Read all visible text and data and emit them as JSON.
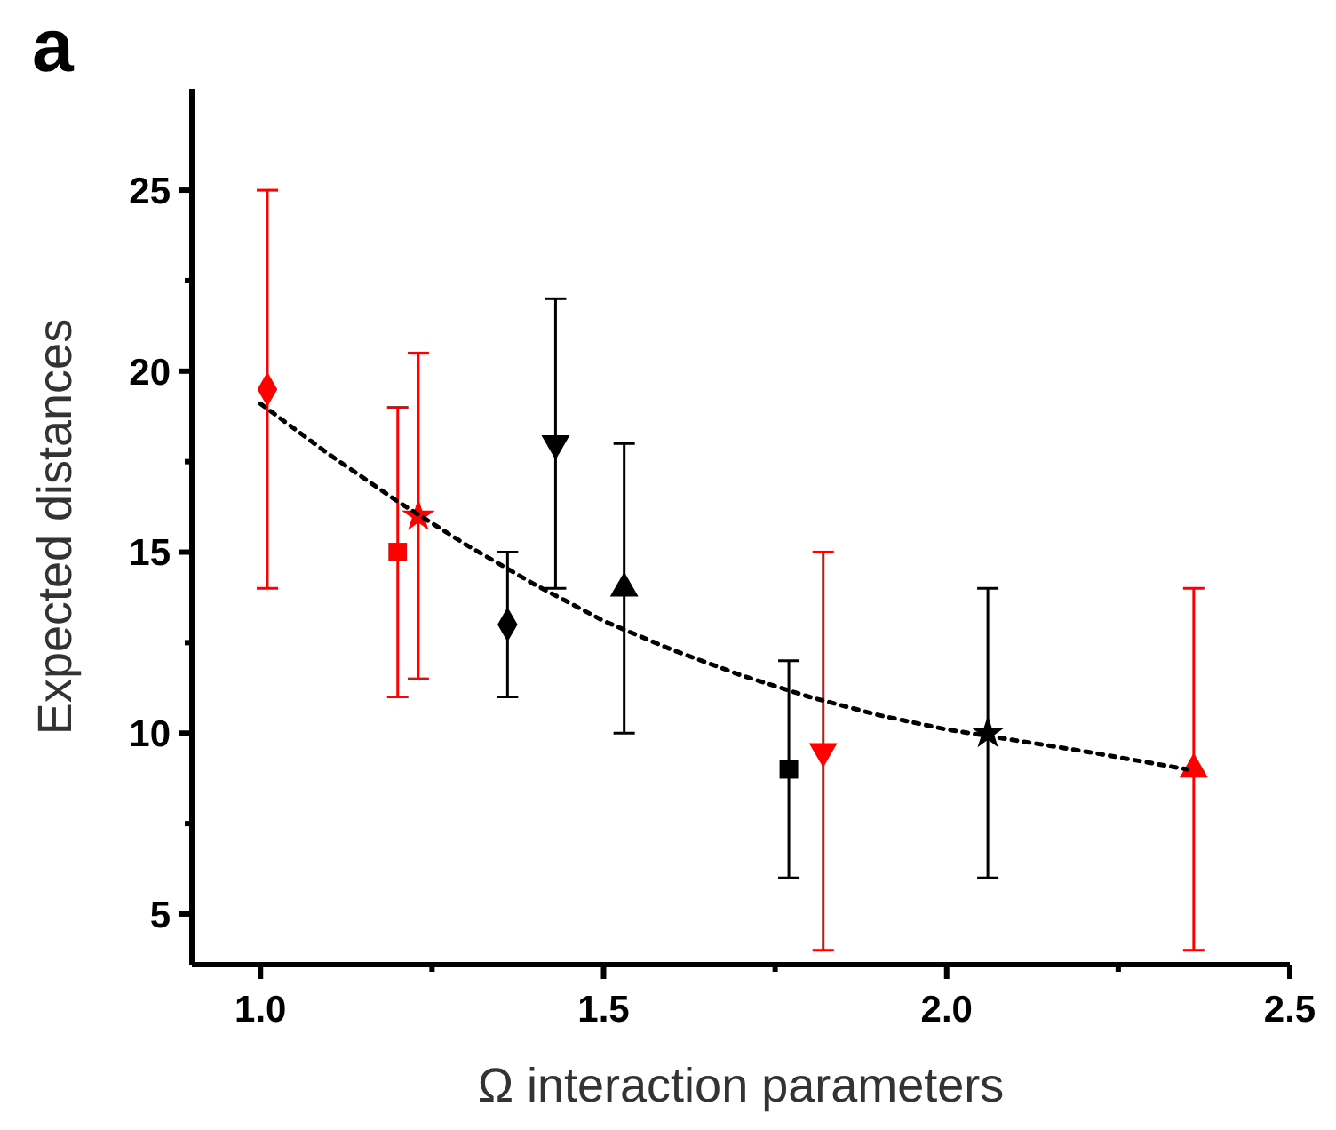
{
  "chart_data": {
    "type": "scatter",
    "title": "a",
    "xlabel": "Ω interaction parameters",
    "ylabel": "Expected distances",
    "xlim": [
      0.9,
      2.5
    ],
    "ylim": [
      3.6,
      27.8
    ],
    "xticks": [
      {
        "value": 1,
        "label": "1.0"
      },
      {
        "value": 1.25,
        "label": null
      },
      {
        "value": 1.5,
        "label": "1.5"
      },
      {
        "value": 1.75,
        "label": null
      },
      {
        "value": 2,
        "label": "2.0"
      },
      {
        "value": 2.25,
        "label": null
      },
      {
        "value": 2.5,
        "label": "2.5"
      }
    ],
    "yticks": [
      5,
      {
        "value": 7.5,
        "label": null
      },
      10,
      {
        "value": 12.5,
        "label": null
      },
      15,
      {
        "value": 17.5,
        "label": null
      },
      20,
      {
        "value": 22.5,
        "label": null
      },
      25
    ],
    "grid": false,
    "series": [
      {
        "color": "#ff0000",
        "marker": "diamond",
        "x": [
          1.01
        ],
        "values": [
          19.5
        ],
        "errors": [
          [
            14,
            25
          ]
        ]
      },
      {
        "color": "#ff0000",
        "marker": "square",
        "x": [
          1.2
        ],
        "values": [
          15
        ],
        "errors": [
          [
            11,
            19
          ]
        ]
      },
      {
        "color": "#ff0000",
        "marker": "star",
        "x": [
          1.23
        ],
        "values": [
          16
        ],
        "errors": [
          [
            11.5,
            20.5
          ]
        ]
      },
      {
        "color": "#000000",
        "marker": "diamond",
        "x": [
          1.36
        ],
        "values": [
          13
        ],
        "errors": [
          [
            11,
            15
          ]
        ]
      },
      {
        "color": "#000000",
        "marker": "triangle-down",
        "x": [
          1.43
        ],
        "values": [
          18
        ],
        "errors": [
          [
            14,
            22
          ]
        ]
      },
      {
        "color": "#000000",
        "marker": "triangle",
        "x": [
          1.53
        ],
        "values": [
          14
        ],
        "errors": [
          [
            10,
            18
          ]
        ]
      },
      {
        "color": "#000000",
        "marker": "square",
        "x": [
          1.77
        ],
        "values": [
          9
        ],
        "errors": [
          [
            6,
            12
          ]
        ]
      },
      {
        "color": "#ff0000",
        "marker": "triangle-down",
        "x": [
          1.82
        ],
        "values": [
          9.5
        ],
        "errors": [
          [
            4,
            15
          ]
        ]
      },
      {
        "color": "#000000",
        "marker": "star",
        "x": [
          2.06
        ],
        "values": [
          10
        ],
        "errors": [
          [
            6,
            14
          ]
        ]
      },
      {
        "color": "#ff0000",
        "marker": "triangle",
        "x": [
          2.36
        ],
        "values": [
          9
        ],
        "errors": [
          [
            4,
            14
          ]
        ]
      },
      {
        "type": "line",
        "color": "#000000",
        "line_style": "dotted",
        "x": [
          1.0,
          1.1,
          1.2,
          1.3,
          1.4,
          1.5,
          1.6,
          1.7,
          1.8,
          1.9,
          2.0,
          2.1,
          2.2,
          2.35
        ],
        "values": [
          19.1,
          17.7,
          16.4,
          15.2,
          14.1,
          13.1,
          12.3,
          11.6,
          11.0,
          10.5,
          10.1,
          9.8,
          9.5,
          9.0
        ]
      }
    ]
  }
}
